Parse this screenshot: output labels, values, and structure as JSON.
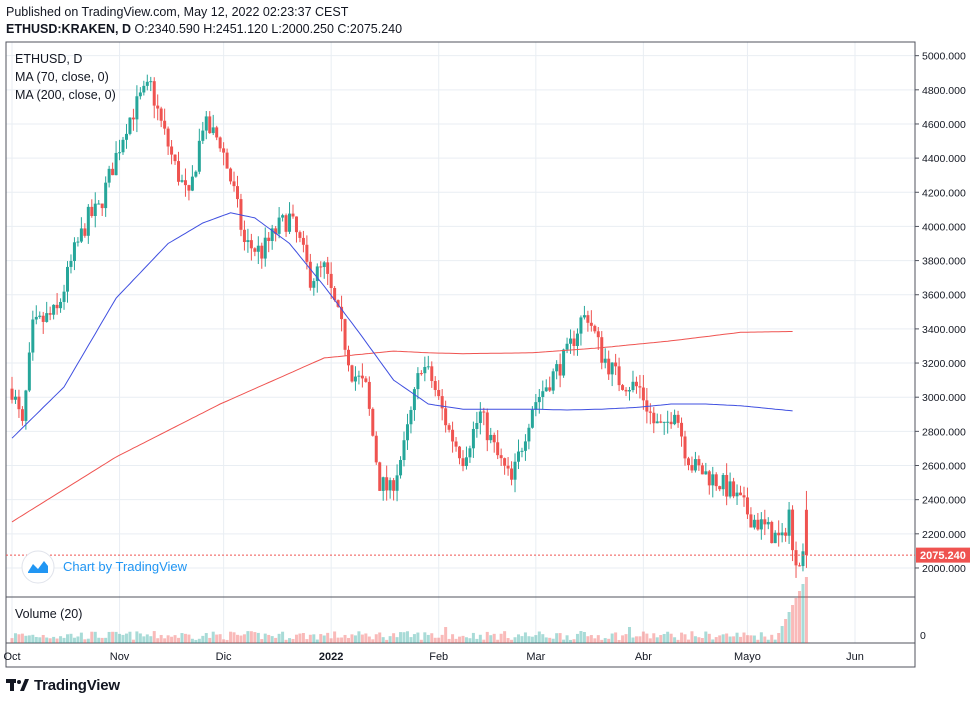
{
  "header": {
    "published": "Published on TradingView.com, May 12, 2022 02:23:37 CEST",
    "symbol": "ETHUSD:KRAKEN, D",
    "ohlc": "O:2340.590 H:2451.120 L:2000.250 C:2075.240"
  },
  "legend": {
    "symbol": "ETHUSD, D",
    "ma70": "MA (70, close, 0)",
    "ma200": "MA (200, close, 0)",
    "volume": "Volume (20)"
  },
  "watermark": "Chart by TradingView",
  "footer_brand": "TradingView",
  "colors": {
    "up": "#26a69a",
    "down": "#ef5350",
    "ma70": "#3f4fe0",
    "ma200": "#ef5350",
    "grid": "#e9eef3",
    "price_label": "#ef5350"
  },
  "chart_data": {
    "type": "candlestick",
    "series_name": "ETHUSD, D",
    "ylim": [
      1830,
      5080
    ],
    "y_ticks": [
      "5000.000",
      "4800.000",
      "4600.000",
      "4400.000",
      "4200.000",
      "4000.000",
      "3800.000",
      "3600.000",
      "3400.000",
      "3200.000",
      "3000.000",
      "2800.000",
      "2600.000",
      "2400.000",
      "2200.000",
      "2000.000"
    ],
    "y_tick_values": [
      5000,
      4800,
      4600,
      4400,
      4200,
      4000,
      3800,
      3600,
      3400,
      3200,
      3000,
      2800,
      2600,
      2400,
      2200,
      2000
    ],
    "x_labels": [
      "Oct",
      "Nov",
      "Dic",
      "2022",
      "Feb",
      "Mar",
      "Abr",
      "Mayo",
      "Jun"
    ],
    "x_label_days": [
      0,
      31,
      61,
      92,
      123,
      151,
      182,
      212,
      243
    ],
    "last_price": 2075.24,
    "last_price_label": "2075.240",
    "volume_tick": "0",
    "start_date": "2021-09-24",
    "days": 230,
    "ohlc_anchors": [
      [
        0,
        3050
      ],
      [
        3,
        2820
      ],
      [
        6,
        3400
      ],
      [
        9,
        3450
      ],
      [
        13,
        3500
      ],
      [
        18,
        3850
      ],
      [
        22,
        4050
      ],
      [
        25,
        4100
      ],
      [
        29,
        4350
      ],
      [
        33,
        4600
      ],
      [
        37,
        4750
      ],
      [
        40,
        4820
      ],
      [
        43,
        4600
      ],
      [
        47,
        4350
      ],
      [
        51,
        4150
      ],
      [
        55,
        4600
      ],
      [
        60,
        4500
      ],
      [
        64,
        4200
      ],
      [
        67,
        3900
      ],
      [
        72,
        3850
      ],
      [
        77,
        4000
      ],
      [
        80,
        4050
      ],
      [
        83,
        3900
      ],
      [
        86,
        3700
      ],
      [
        90,
        3750
      ],
      [
        95,
        3400
      ],
      [
        98,
        3150
      ],
      [
        102,
        3050
      ],
      [
        106,
        2500
      ],
      [
        109,
        2450
      ],
      [
        113,
        2700
      ],
      [
        118,
        3200
      ],
      [
        121,
        3100
      ],
      [
        126,
        2800
      ],
      [
        130,
        2650
      ],
      [
        135,
        2900
      ],
      [
        140,
        2650
      ],
      [
        144,
        2500
      ],
      [
        150,
        2950
      ],
      [
        155,
        3100
      ],
      [
        160,
        3250
      ],
      [
        164,
        3450
      ],
      [
        166,
        3480
      ],
      [
        170,
        3250
      ],
      [
        175,
        3100
      ],
      [
        181,
        3050
      ],
      [
        185,
        2850
      ],
      [
        188,
        2800
      ],
      [
        191,
        2950
      ],
      [
        194,
        2700
      ],
      [
        196,
        2600
      ],
      [
        200,
        2550
      ],
      [
        204,
        2500
      ],
      [
        207,
        2450
      ],
      [
        210,
        2380
      ],
      [
        213,
        2300
      ],
      [
        216,
        2250
      ],
      [
        219,
        2200
      ],
      [
        222,
        2150
      ],
      [
        224,
        2340
      ],
      [
        225,
        2075
      ]
    ],
    "ma70_anchors": [
      [
        0,
        2760
      ],
      [
        15,
        3060
      ],
      [
        30,
        3580
      ],
      [
        45,
        3900
      ],
      [
        55,
        4020
      ],
      [
        63,
        4080
      ],
      [
        70,
        4050
      ],
      [
        80,
        3900
      ],
      [
        90,
        3650
      ],
      [
        100,
        3380
      ],
      [
        110,
        3100
      ],
      [
        120,
        2960
      ],
      [
        130,
        2930
      ],
      [
        140,
        2930
      ],
      [
        150,
        2930
      ],
      [
        160,
        2925
      ],
      [
        170,
        2930
      ],
      [
        180,
        2940
      ],
      [
        190,
        2960
      ],
      [
        200,
        2960
      ],
      [
        210,
        2950
      ],
      [
        225,
        2920
      ]
    ],
    "ma200_anchors": [
      [
        0,
        2270
      ],
      [
        30,
        2650
      ],
      [
        60,
        2960
      ],
      [
        90,
        3230
      ],
      [
        100,
        3250
      ],
      [
        110,
        3270
      ],
      [
        120,
        3260
      ],
      [
        130,
        3255
      ],
      [
        150,
        3260
      ],
      [
        170,
        3290
      ],
      [
        190,
        3330
      ],
      [
        210,
        3380
      ],
      [
        225,
        3385
      ]
    ]
  }
}
